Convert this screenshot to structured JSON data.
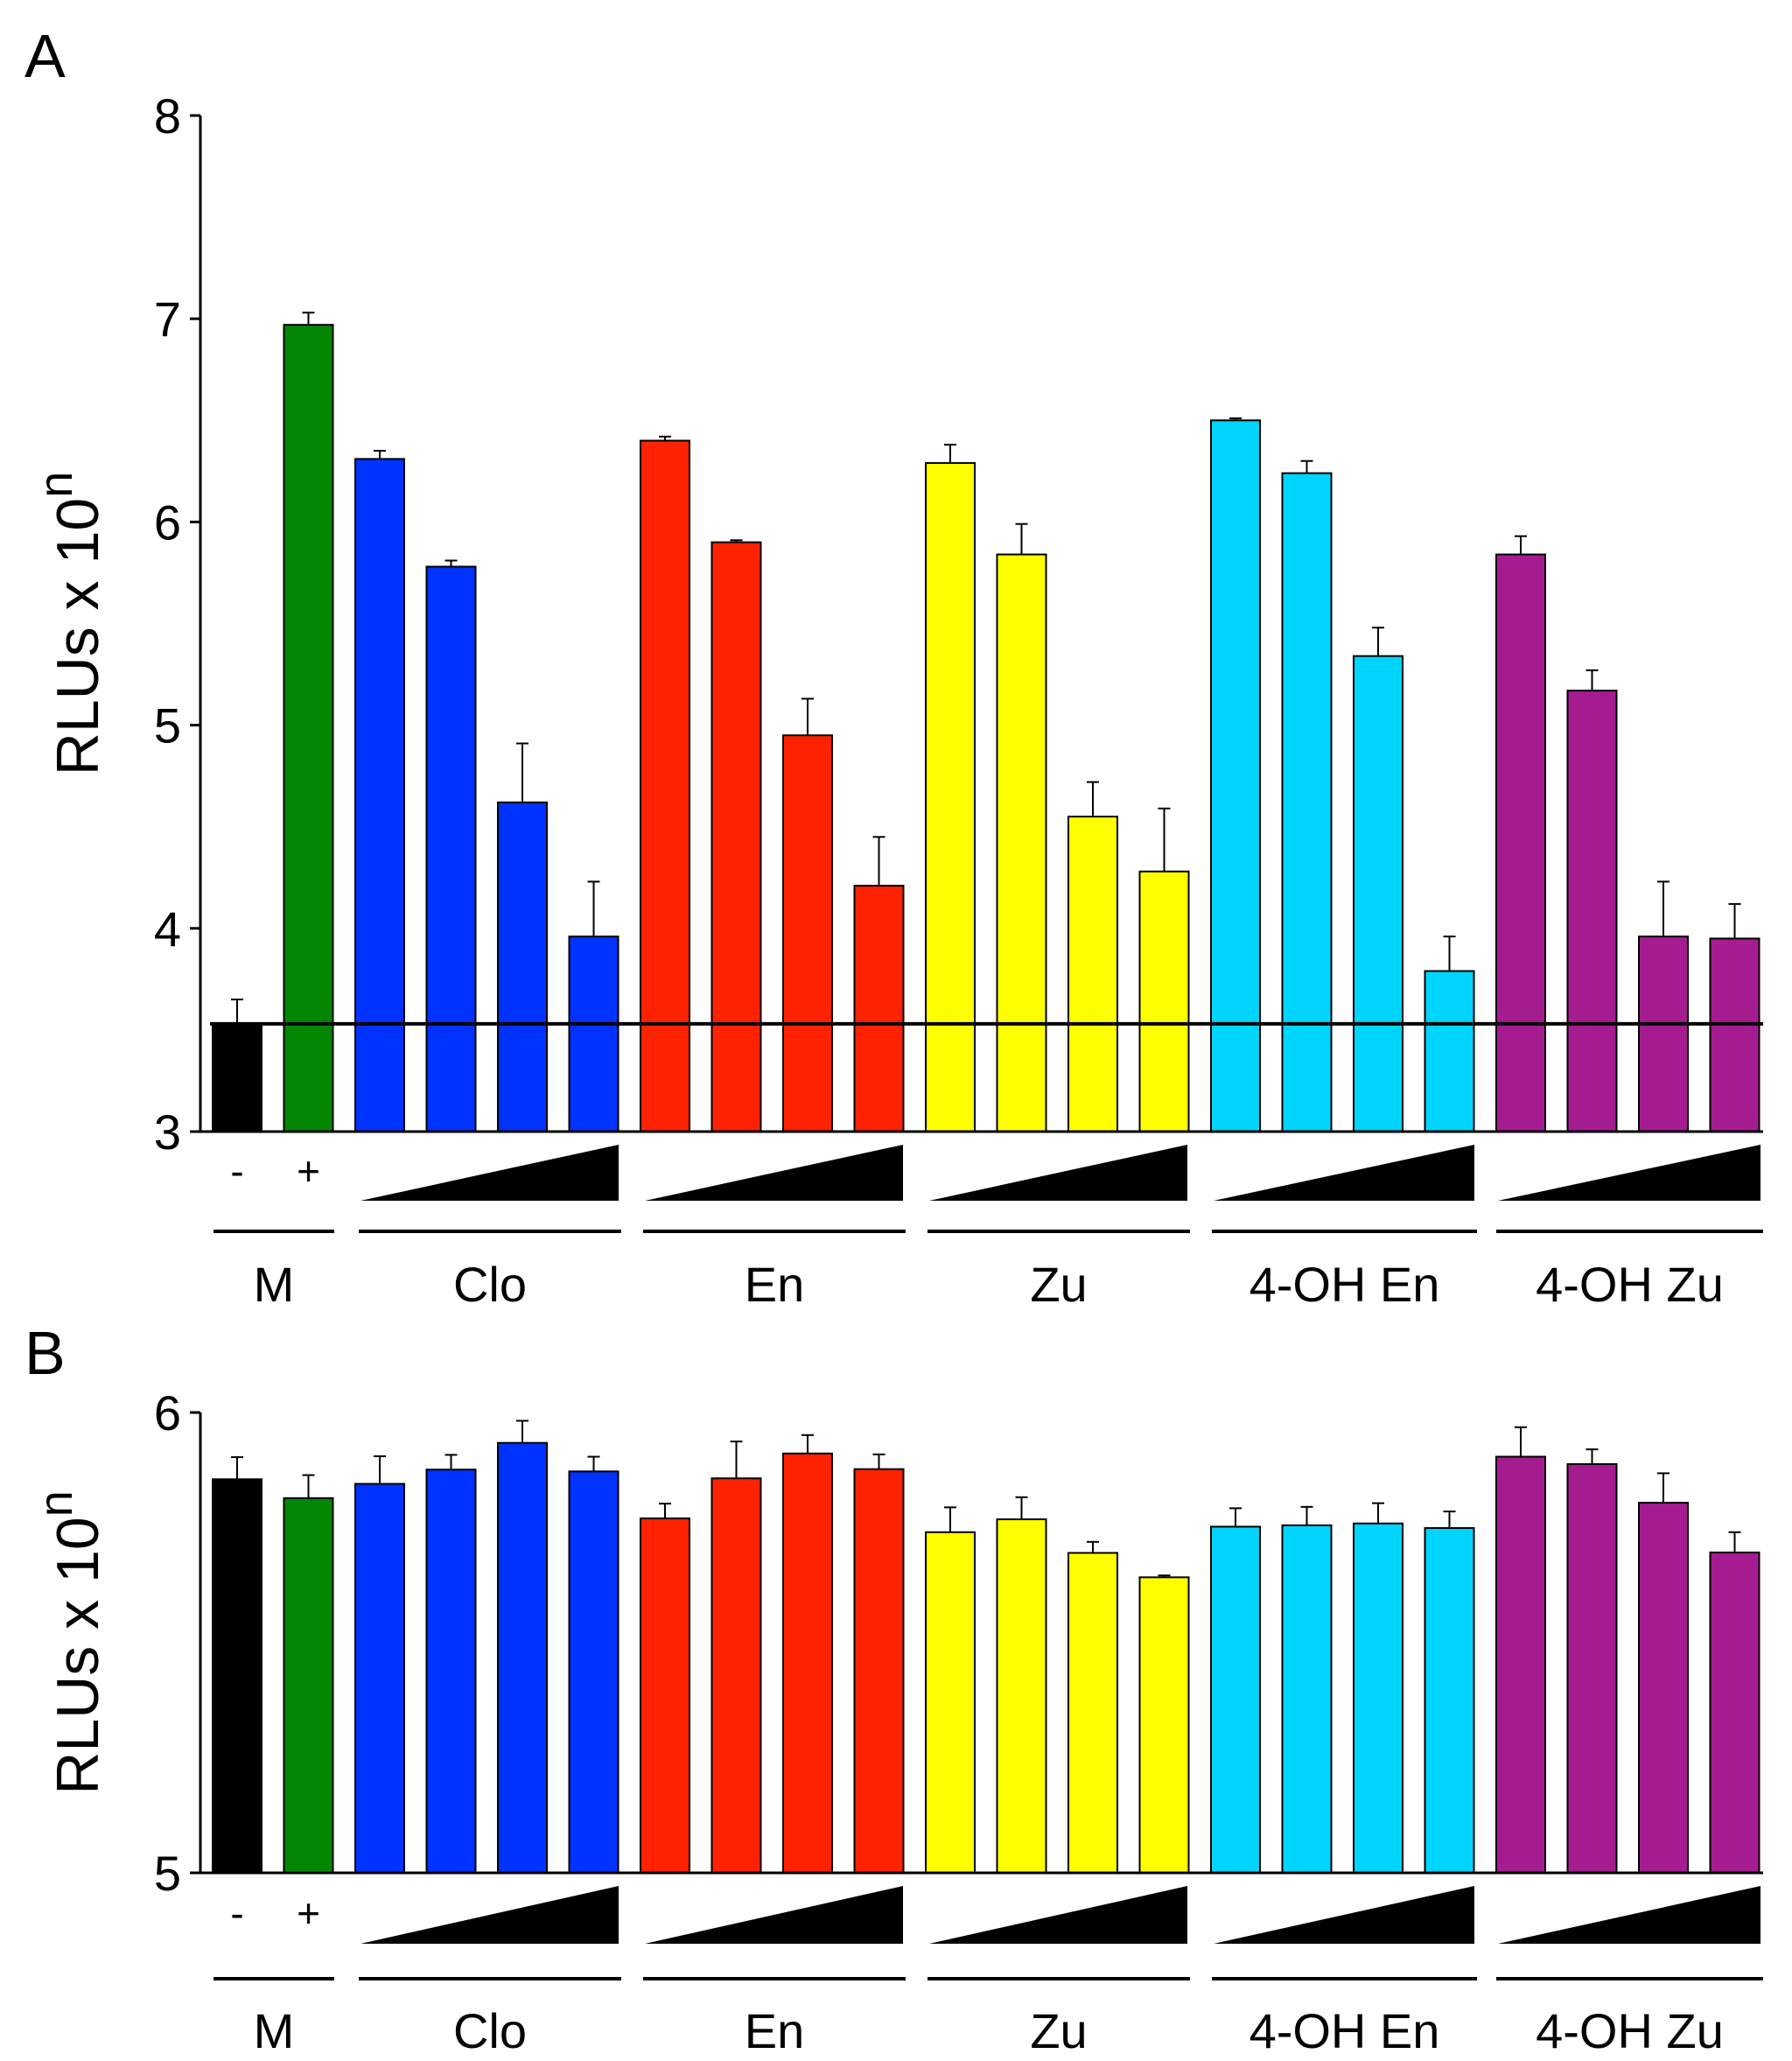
{
  "chart_data": [
    {
      "panel": "A",
      "type": "bar",
      "ylabel": "RLUs x 10",
      "ylabel_sup": "n",
      "ylim": [
        3,
        8
      ],
      "yticks": [
        3,
        4,
        5,
        6,
        7,
        8
      ],
      "reference_line": 3.53,
      "groups": [
        {
          "label": "M",
          "signs": [
            "-",
            "+"
          ],
          "colors": [
            "#000000",
            "#038703"
          ],
          "values": [
            3.53,
            6.97
          ],
          "errors": [
            0.12,
            0.06
          ]
        },
        {
          "label": "Clo",
          "color": "#0033ff",
          "values": [
            6.31,
            5.78,
            4.62,
            3.96
          ],
          "errors": [
            0.04,
            0.03,
            0.29,
            0.27
          ]
        },
        {
          "label": "En",
          "color": "#ff2200",
          "values": [
            6.4,
            5.9,
            4.95,
            4.21
          ],
          "errors": [
            0.02,
            0.01,
            0.18,
            0.24
          ]
        },
        {
          "label": "Zu",
          "color": "#ffff00",
          "values": [
            6.29,
            5.84,
            4.55,
            4.28
          ],
          "errors": [
            0.09,
            0.15,
            0.17,
            0.31
          ]
        },
        {
          "label": "4-OH En",
          "color": "#00d5ff",
          "values": [
            6.5,
            6.24,
            5.34,
            3.79
          ],
          "errors": [
            0.01,
            0.06,
            0.14,
            0.17
          ]
        },
        {
          "label": "4-OH Zu",
          "color": "#a51c91",
          "values": [
            5.84,
            5.17,
            3.96,
            3.95
          ],
          "errors": [
            0.09,
            0.1,
            0.27,
            0.17
          ]
        }
      ]
    },
    {
      "panel": "B",
      "type": "bar",
      "ylabel": "RLUs x 10",
      "ylabel_sup": "n",
      "ylim": [
        5,
        6
      ],
      "yticks": [
        5,
        6
      ],
      "groups": [
        {
          "label": "M",
          "signs": [
            "-",
            "+"
          ],
          "colors": [
            "#000000",
            "#038703"
          ],
          "values": [
            5.855,
            5.814
          ],
          "errors": [
            0.048,
            0.05
          ]
        },
        {
          "label": "Clo",
          "color": "#0033ff",
          "values": [
            5.845,
            5.876,
            5.934,
            5.872
          ],
          "errors": [
            0.06,
            0.032,
            0.048,
            0.032
          ]
        },
        {
          "label": "En",
          "color": "#ff2200",
          "values": [
            5.77,
            5.857,
            5.911,
            5.877
          ],
          "errors": [
            0.032,
            0.08,
            0.04,
            0.032
          ]
        },
        {
          "label": "Zu",
          "color": "#ffff00",
          "values": [
            5.74,
            5.768,
            5.695,
            5.642
          ],
          "errors": [
            0.054,
            0.048,
            0.024,
            0.004
          ]
        },
        {
          "label": "4-OH En",
          "color": "#00d5ff",
          "values": [
            5.752,
            5.755,
            5.759,
            5.749
          ],
          "errors": [
            0.04,
            0.04,
            0.044,
            0.036
          ]
        },
        {
          "label": "4-OH Zu",
          "color": "#a51c91",
          "values": [
            5.904,
            5.888,
            5.804,
            5.696
          ],
          "errors": [
            0.064,
            0.032,
            0.064,
            0.044
          ]
        }
      ]
    }
  ]
}
